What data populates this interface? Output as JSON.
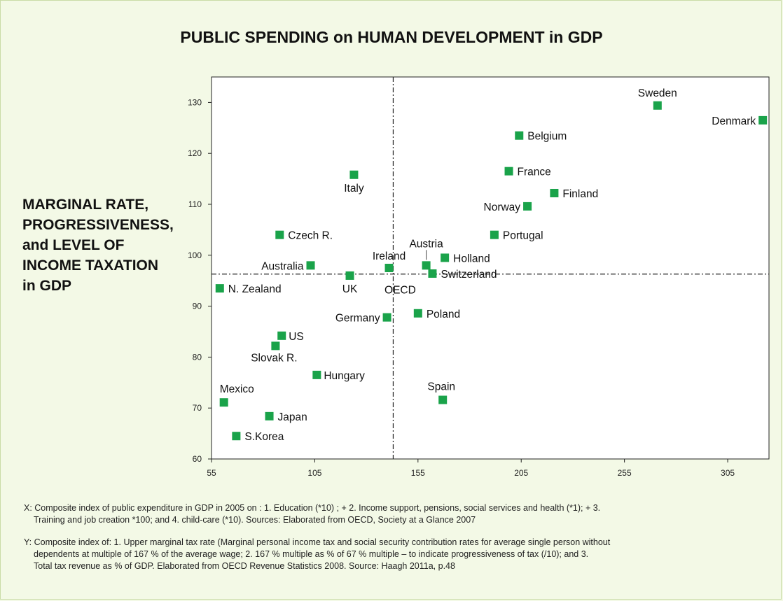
{
  "chart_data": {
    "type": "scatter",
    "title": "PUBLIC SPENDING on HUMAN DEVELOPMENT in GDP",
    "ylabel_lines": [
      "MARGINAL RATE,",
      "PROGRESSIVENESS,",
      "and LEVEL OF",
      "INCOME TAXATION",
      "in GDP"
    ],
    "xlim": [
      55,
      325
    ],
    "ylim": [
      60,
      135
    ],
    "x_ticks": [
      55,
      105,
      155,
      205,
      255,
      305
    ],
    "y_ticks": [
      60,
      70,
      80,
      90,
      100,
      110,
      120,
      130
    ],
    "reference_lines": {
      "x": 143,
      "y": 96.3,
      "label": "OECD"
    },
    "marker_color": "#1aa34a",
    "points": [
      {
        "name": "Sweden",
        "x": 271,
        "y": 129.4
      },
      {
        "name": "Denmark",
        "x": 322,
        "y": 126.5
      },
      {
        "name": "Belgium",
        "x": 204,
        "y": 123.5
      },
      {
        "name": "France",
        "x": 199,
        "y": 116.5
      },
      {
        "name": "Finland",
        "x": 221,
        "y": 112.2
      },
      {
        "name": "Norway",
        "x": 208,
        "y": 109.6
      },
      {
        "name": "Italy",
        "x": 124,
        "y": 115.8
      },
      {
        "name": "Portugal",
        "x": 192,
        "y": 104.0
      },
      {
        "name": "Czech R.",
        "x": 88,
        "y": 104.0
      },
      {
        "name": "Austria",
        "x": 159,
        "y": 98.0
      },
      {
        "name": "Holland",
        "x": 168,
        "y": 99.5
      },
      {
        "name": "Switzerland",
        "x": 162,
        "y": 96.4
      },
      {
        "name": "Ireland",
        "x": 141,
        "y": 97.5
      },
      {
        "name": "Australia",
        "x": 103,
        "y": 98.0
      },
      {
        "name": "UK",
        "x": 122,
        "y": 96.0
      },
      {
        "name": "N. Zealand",
        "x": 59,
        "y": 93.5
      },
      {
        "name": "Germany",
        "x": 140,
        "y": 87.8
      },
      {
        "name": "Poland",
        "x": 155,
        "y": 88.6
      },
      {
        "name": "US",
        "x": 89,
        "y": 84.2
      },
      {
        "name": "Slovak R.",
        "x": 86,
        "y": 82.2
      },
      {
        "name": "Hungary",
        "x": 106,
        "y": 76.5
      },
      {
        "name": "Mexico",
        "x": 61,
        "y": 71.1
      },
      {
        "name": "Spain",
        "x": 167,
        "y": 71.6
      },
      {
        "name": "Japan",
        "x": 83,
        "y": 68.4
      },
      {
        "name": "S.Korea",
        "x": 67,
        "y": 64.5
      }
    ]
  },
  "notes": {
    "x_note": [
      "X: Composite index of public expenditure in GDP in 2005 on : 1. Education (*10) ; + 2. Income support, pensions, social services and health (*1); + 3.",
      "Training and job creation *100; and 4. child-care (*10).   Sources: Elaborated from OECD, Society at a Glance 2007"
    ],
    "y_note": [
      "Y:  Composite index of: 1. Upper marginal tax rate (Marginal personal income tax and social security contribution rates for average single person without",
      "dependents at multiple of 167 % of the average wage; 2. 167 % multiple as % of 67 % multiple – to indicate progressiveness of tax (/10); and 3.",
      "Total tax revenue as % of GDP. Elaborated from OECD Revenue Statistics 2008.  Source: Haagh 2011a, p.48"
    ]
  }
}
